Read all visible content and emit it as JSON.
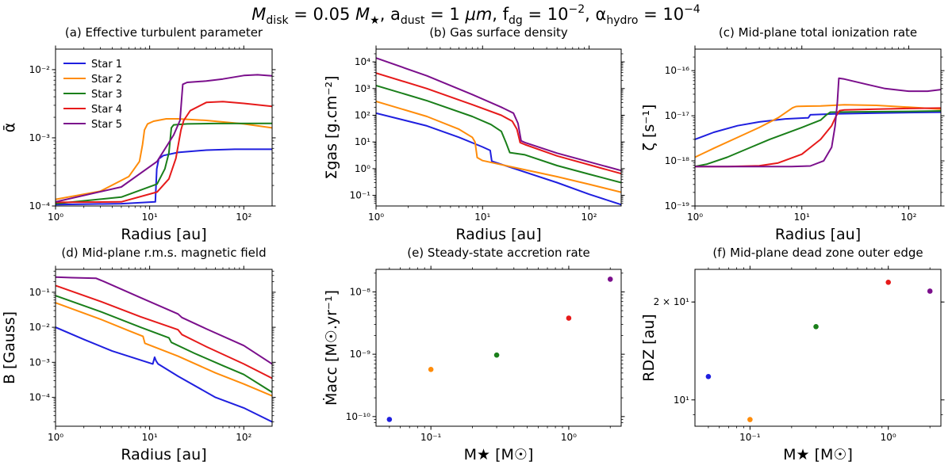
{
  "suptitle": "M_disk = 0.05 M★, a_dust = 1 μm, f_dg = 10⁻², α_hydro = 10⁻⁴",
  "suptitle_parts": {
    "m": "M",
    "disk": "disk",
    "eq1": " = 0.05 ",
    "mstar": "M",
    "star": "★",
    "a": ", a",
    "dust": "dust",
    "eq2": " = 1 ",
    "mu": "μm",
    "f": ", f",
    "dg": "dg",
    "eq3": " = 10",
    "exp3": "−2",
    "alpha": ", α",
    "hydro": "hydro",
    "eq4": " = 10",
    "exp4": "−4"
  },
  "colors": {
    "star1": "#1f1fdf",
    "star2": "#ff8c0a",
    "star3": "#1a7f1a",
    "star4": "#e61a1a",
    "star5": "#7b0f8c"
  },
  "legend": [
    "Star 1",
    "Star 2",
    "Star 3",
    "Star 4",
    "Star 5"
  ],
  "chart_data": [
    {
      "panel": "a",
      "type": "line",
      "title": "(a) Effective turbulent parameter",
      "xlabel": "Radius [au]",
      "ylabel": "ᾱ",
      "xscale": "log",
      "yscale": "log",
      "xlim": [
        1,
        200
      ],
      "ylim": [
        0.0001,
        0.02
      ],
      "xticks": [
        {
          "v": 1,
          "label": "10⁰"
        },
        {
          "v": 10,
          "label": "10¹"
        },
        {
          "v": 100,
          "label": "10²"
        }
      ],
      "yticks": [
        {
          "v": 0.0001,
          "label": "10⁻⁴"
        },
        {
          "v": 0.001,
          "label": "10⁻³"
        },
        {
          "v": 0.01,
          "label": "10⁻²"
        }
      ],
      "legend_position": "top-left",
      "series": [
        {
          "name": "Star 1",
          "x": [
            1,
            5,
            11.5,
            11.9,
            12.5,
            14,
            20,
            40,
            80,
            200
          ],
          "y": [
            0.000105,
            0.000108,
            0.000115,
            0.00035,
            0.00049,
            0.00055,
            0.00061,
            0.00066,
            0.00068,
            0.00068
          ]
        },
        {
          "name": "Star 2",
          "x": [
            1,
            3,
            6,
            7.8,
            8.4,
            8.8,
            9.5,
            11,
            15,
            20,
            40,
            100,
            200
          ],
          "y": [
            0.000125,
            0.000165,
            0.00027,
            0.00045,
            0.0008,
            0.0013,
            0.0016,
            0.00175,
            0.0019,
            0.0019,
            0.0018,
            0.0016,
            0.0014
          ]
        },
        {
          "name": "Star 3",
          "x": [
            1,
            5,
            12,
            14.5,
            16,
            17,
            18,
            25,
            50,
            200
          ],
          "y": [
            0.000108,
            0.000135,
            0.00021,
            0.00035,
            0.0006,
            0.0014,
            0.00155,
            0.0016,
            0.00162,
            0.00163
          ]
        },
        {
          "name": "Star 4",
          "x": [
            1,
            5,
            12,
            16,
            19,
            20.5,
            21.5,
            23,
            27,
            40,
            60,
            100,
            200
          ],
          "y": [
            0.000113,
            0.000115,
            0.00016,
            0.00025,
            0.0005,
            0.0009,
            0.0013,
            0.0018,
            0.0025,
            0.0033,
            0.0034,
            0.0032,
            0.0029
          ]
        },
        {
          "name": "Star 5",
          "x": [
            1,
            5,
            12,
            18,
            21,
            21.8,
            22.5,
            25,
            40,
            60,
            100,
            140,
            200
          ],
          "y": [
            0.000115,
            0.00019,
            0.00045,
            0.0011,
            0.0018,
            0.0035,
            0.0061,
            0.0065,
            0.0068,
            0.0073,
            0.0082,
            0.0084,
            0.0081
          ]
        }
      ]
    },
    {
      "panel": "b",
      "type": "line",
      "title": "(b) Gas surface density",
      "xlabel": "Radius [au]",
      "ylabel": "Σgas [g.cm⁻²]",
      "xscale": "log",
      "yscale": "log",
      "xlim": [
        1,
        200
      ],
      "ylim": [
        0.04,
        30000
      ],
      "xticks": [
        {
          "v": 1,
          "label": "10⁰"
        },
        {
          "v": 10,
          "label": "10¹"
        },
        {
          "v": 100,
          "label": "10²"
        }
      ],
      "yticks": [
        {
          "v": 0.1,
          "label": "10⁻¹"
        },
        {
          "v": 1,
          "label": "10⁰"
        },
        {
          "v": 10,
          "label": "10¹"
        },
        {
          "v": 100,
          "label": "10²"
        },
        {
          "v": 1000,
          "label": "10³"
        },
        {
          "v": 10000,
          "label": "10⁴"
        }
      ],
      "series": [
        {
          "name": "Star 1",
          "x": [
            1,
            3,
            6,
            10,
            11.8,
            12.2,
            20,
            50,
            100,
            200
          ],
          "y": [
            120,
            40,
            15,
            6.5,
            4.8,
            1.9,
            1.0,
            0.3,
            0.11,
            0.045
          ]
        },
        {
          "name": "Star 2",
          "x": [
            1,
            3,
            6,
            8,
            8.5,
            8.9,
            10,
            20,
            50,
            100,
            200
          ],
          "y": [
            330,
            90,
            30,
            15,
            10,
            2.6,
            2.0,
            1.1,
            0.5,
            0.26,
            0.13
          ]
        },
        {
          "name": "Star 3",
          "x": [
            1,
            3,
            8,
            12,
            15,
            16.5,
            18,
            25,
            50,
            100,
            200
          ],
          "y": [
            1300,
            350,
            90,
            45,
            25,
            10,
            4.0,
            3.3,
            1.3,
            0.62,
            0.3
          ]
        },
        {
          "name": "Star 4",
          "x": [
            1,
            3,
            8,
            15,
            19,
            21,
            22.5,
            25,
            50,
            100,
            200
          ],
          "y": [
            3800,
            1000,
            250,
            100,
            60,
            30,
            9.5,
            8.0,
            3.0,
            1.4,
            0.65
          ]
        },
        {
          "name": "Star 5",
          "x": [
            1,
            3,
            8,
            15,
            19.5,
            21.5,
            23,
            25,
            50,
            100,
            200
          ],
          "y": [
            14000,
            3000,
            600,
            200,
            120,
            50,
            11,
            9.5,
            3.8,
            1.8,
            0.85
          ]
        }
      ]
    },
    {
      "panel": "c",
      "type": "line",
      "title": "(c) Mid-plane total ionization rate",
      "xlabel": "Radius [au]",
      "ylabel": "ζ [s⁻¹]",
      "xscale": "log",
      "yscale": "log",
      "xlim": [
        1,
        200
      ],
      "ylim": [
        1e-19,
        3e-16
      ],
      "xticks": [
        {
          "v": 1,
          "label": "10⁰"
        },
        {
          "v": 10,
          "label": "10¹"
        },
        {
          "v": 100,
          "label": "10²"
        }
      ],
      "yticks": [
        {
          "v": 1e-19,
          "label": "10⁻¹⁹"
        },
        {
          "v": 1e-18,
          "label": "10⁻¹⁸"
        },
        {
          "v": 1e-17,
          "label": "10⁻¹⁷"
        },
        {
          "v": 1e-16,
          "label": "10⁻¹⁶"
        }
      ],
      "series": [
        {
          "name": "Star 1",
          "x": [
            1,
            1.5,
            2.5,
            4,
            7,
            11.5,
            12,
            20,
            50,
            200
          ],
          "y": [
            3e-18,
            4.3e-18,
            6e-18,
            7.3e-18,
            8.5e-18,
            9e-18,
            1.05e-17,
            1.1e-17,
            1.15e-17,
            1.2e-17
          ]
        },
        {
          "name": "Star 2",
          "x": [
            1,
            1.5,
            2.5,
            4,
            6,
            8.2,
            8.8,
            9.2,
            15,
            25,
            50,
            100,
            200
          ],
          "y": [
            1.2e-18,
            1.9e-18,
            3.3e-18,
            5.5e-18,
            9e-18,
            1.5e-17,
            1.6e-17,
            1.62e-17,
            1.65e-17,
            1.75e-17,
            1.7e-17,
            1.55e-17,
            1.4e-17
          ]
        },
        {
          "name": "Star 3",
          "x": [
            1,
            1.3,
            2,
            3,
            5,
            10,
            15,
            17,
            18.5,
            30,
            100,
            200
          ],
          "y": [
            7.5e-19,
            8.5e-19,
            1.2e-18,
            1.8e-18,
            3e-18,
            5.5e-18,
            8e-18,
            1.05e-17,
            1.2e-17,
            1.22e-17,
            1.25e-17,
            1.28e-17
          ]
        },
        {
          "name": "Star 4",
          "x": [
            1,
            2,
            4,
            6,
            10,
            15,
            19,
            21,
            22.5,
            25,
            50,
            100,
            200
          ],
          "y": [
            7.5e-19,
            7.5e-19,
            7.8e-19,
            9e-19,
            1.4e-18,
            3e-18,
            6e-18,
            1e-17,
            1.3e-17,
            1.35e-17,
            1.4e-17,
            1.45e-17,
            1.48e-17
          ]
        },
        {
          "name": "Star 5",
          "x": [
            1,
            3,
            8,
            12,
            16,
            19,
            20.5,
            21.5,
            22.2,
            25,
            40,
            60,
            100,
            150,
            200
          ],
          "y": [
            7.5e-19,
            7.5e-19,
            7.5e-19,
            7.7e-19,
            1e-18,
            2e-18,
            6e-18,
            2e-17,
            6.8e-17,
            6.5e-17,
            5e-17,
            4e-17,
            3.5e-17,
            3.5e-17,
            3.8e-17
          ]
        }
      ]
    },
    {
      "panel": "d",
      "type": "line",
      "title": "(d) Mid-plane r.m.s. magnetic field",
      "xlabel": "Radius [au]",
      "ylabel": "B [Gauss]",
      "xscale": "log",
      "yscale": "log",
      "xlim": [
        1,
        200
      ],
      "ylim": [
        1.5e-05,
        0.45
      ],
      "xticks": [
        {
          "v": 1,
          "label": "10⁰"
        },
        {
          "v": 10,
          "label": "10¹"
        },
        {
          "v": 100,
          "label": "10²"
        }
      ],
      "yticks": [
        {
          "v": 0.0001,
          "label": "10⁻⁴"
        },
        {
          "v": 0.001,
          "label": "10⁻³"
        },
        {
          "v": 0.01,
          "label": "10⁻²"
        },
        {
          "v": 0.1,
          "label": "10⁻¹"
        }
      ],
      "series": [
        {
          "name": "Star 1",
          "x": [
            1,
            2,
            4,
            7,
            10.8,
            11.3,
            11.7,
            12.3,
            20,
            50,
            100,
            200
          ],
          "y": [
            0.01,
            0.0045,
            0.0021,
            0.0013,
            0.0009,
            0.0014,
            0.0011,
            0.0009,
            0.0004,
            0.0001,
            5e-05,
            2e-05
          ]
        },
        {
          "name": "Star 2",
          "x": [
            1,
            3,
            6,
            8.5,
            8.9,
            20,
            50,
            100,
            200
          ],
          "y": [
            0.05,
            0.017,
            0.008,
            0.0055,
            0.0035,
            0.0015,
            0.0005,
            0.00024,
            0.00011
          ]
        },
        {
          "name": "Star 3",
          "x": [
            1,
            3,
            8,
            16,
            17,
            30,
            60,
            100,
            200
          ],
          "y": [
            0.08,
            0.028,
            0.01,
            0.005,
            0.0037,
            0.0018,
            0.0008,
            0.00045,
            0.00014
          ]
        },
        {
          "name": "Star 4",
          "x": [
            1,
            3,
            8,
            20,
            22,
            40,
            100,
            200
          ],
          "y": [
            0.155,
            0.055,
            0.02,
            0.0085,
            0.0062,
            0.0028,
            0.0009,
            0.00035
          ]
        },
        {
          "name": "Star 5",
          "x": [
            1,
            1.5,
            2.7,
            3.3,
            8,
            20,
            22,
            40,
            100,
            200
          ],
          "y": [
            0.27,
            0.26,
            0.25,
            0.2,
            0.07,
            0.024,
            0.019,
            0.009,
            0.003,
            0.0009
          ]
        }
      ]
    },
    {
      "panel": "e",
      "type": "scatter",
      "title": "(e) Steady-state accretion rate",
      "xlabel": "M★ [M☉]",
      "ylabel": "Ṁacc [M☉.yr⁻¹]",
      "xscale": "log",
      "yscale": "log",
      "xlim": [
        0.04,
        2.4
      ],
      "ylim": [
        7e-11,
        2.3e-08
      ],
      "xticks": [
        {
          "v": 0.1,
          "label": "10⁻¹"
        },
        {
          "v": 1,
          "label": "10⁰"
        }
      ],
      "yticks": [
        {
          "v": 1e-10,
          "label": "10⁻¹⁰"
        },
        {
          "v": 1e-09,
          "label": "10⁻⁹"
        },
        {
          "v": 1e-08,
          "label": "10⁻⁸"
        }
      ],
      "points": [
        {
          "name": "Star 1",
          "x": 0.05,
          "y": 9e-11
        },
        {
          "name": "Star 2",
          "x": 0.1,
          "y": 5.7e-10
        },
        {
          "name": "Star 3",
          "x": 0.3,
          "y": 9.7e-10
        },
        {
          "name": "Star 4",
          "x": 1.0,
          "y": 3.8e-09
        },
        {
          "name": "Star 5",
          "x": 2.0,
          "y": 1.6e-08
        }
      ]
    },
    {
      "panel": "f",
      "type": "scatter",
      "title": "(f) Mid-plane dead zone outer edge",
      "xlabel": "M★ [M☉]",
      "ylabel": "RDZ [au]",
      "xscale": "log",
      "yscale": "log",
      "xlim": [
        0.04,
        2.4
      ],
      "ylim": [
        8.3,
        25.2
      ],
      "xticks": [
        {
          "v": 0.1,
          "label": "10⁻¹"
        },
        {
          "v": 1,
          "label": "10⁰"
        }
      ],
      "yticks": [
        {
          "v": 10,
          "label": "10¹"
        },
        {
          "v": 20,
          "label": "2 × 10¹"
        }
      ],
      "points": [
        {
          "name": "Star 1",
          "x": 0.05,
          "y": 11.8
        },
        {
          "name": "Star 2",
          "x": 0.1,
          "y": 8.7
        },
        {
          "name": "Star 3",
          "x": 0.3,
          "y": 16.8
        },
        {
          "name": "Star 4",
          "x": 1.0,
          "y": 23.0
        },
        {
          "name": "Star 5",
          "x": 2.0,
          "y": 21.6
        }
      ]
    }
  ]
}
